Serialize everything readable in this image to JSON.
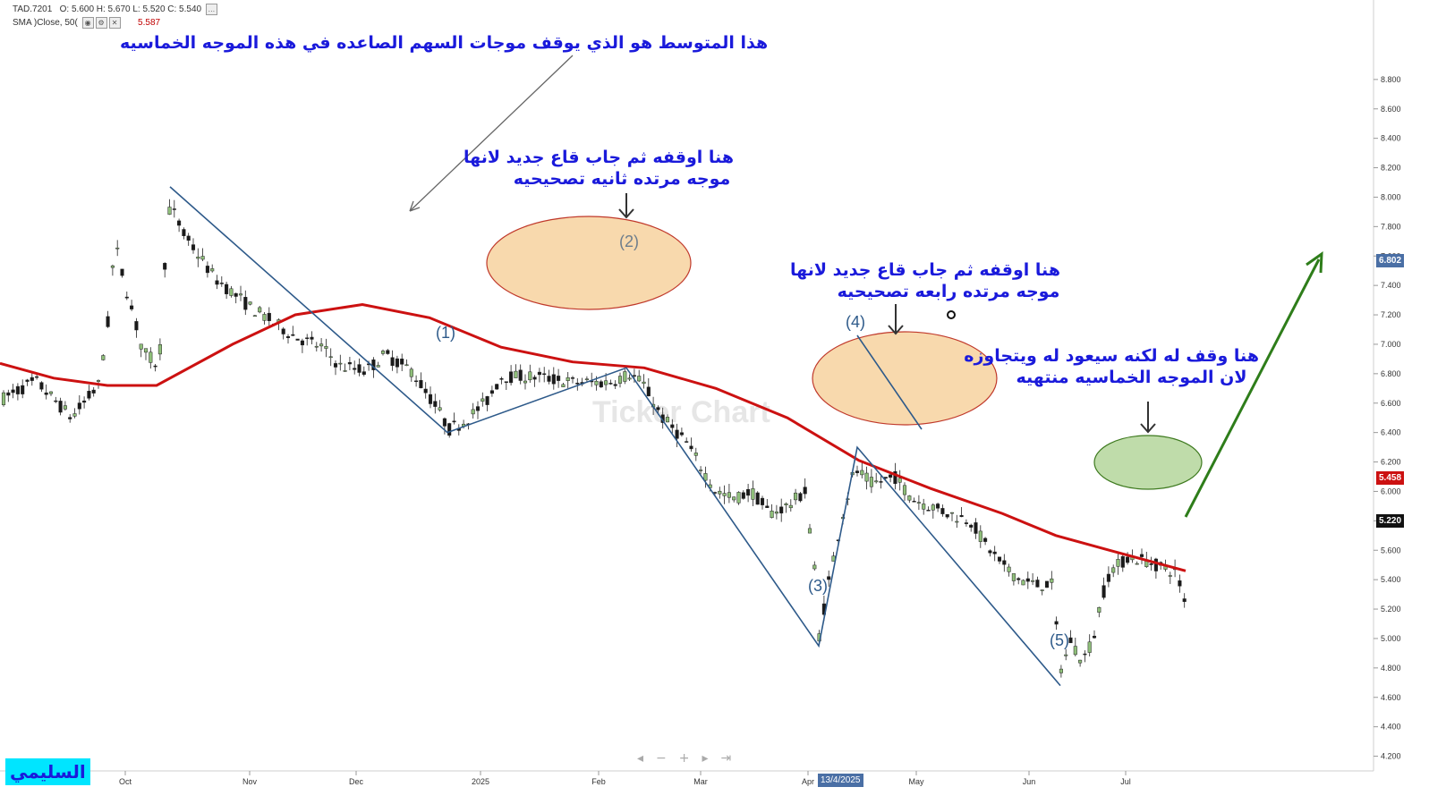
{
  "header": {
    "symbol": "TAD.7201",
    "ohlc": "O: 5.600  H: 5.670  L: 5.520  C: 5.540",
    "sma_label": "SMA  )Close, 50(",
    "sma_value": "5.587"
  },
  "annotations": {
    "sma_note": "هذا المتوسط هو الذي يوقف موجات السهم الصاعده في هذه الموجه الخماسيه",
    "wave2_note_1": "هنا اوقفه ثم جاب قاع جديد لانها",
    "wave2_note_2": "موجه مرتده ثانيه تصحيحيه",
    "wave4_note_1": "هنا اوقفه ثم جاب قاع جديد لانها",
    "wave4_note_2": "موجه مرتده رابعه تصحيحيه",
    "end_note_1": "هنا وقف له لكنه سيعود له ويتجاوزه",
    "end_note_2": "لان الموجه الخماسيه منتهيه"
  },
  "wave_labels": [
    "(1)",
    "(2)",
    "(3)",
    "(4)",
    "(5)"
  ],
  "watermark": "TickerChart",
  "signature": "السليمي",
  "badges": {
    "upper": "6.802",
    "sma": "5.458",
    "last": "5.220",
    "date": "13/4/2025"
  },
  "colors": {
    "sma": "#cc1111",
    "wave_lines": "#2e5a8a",
    "up_candle": "#8fbf7a",
    "down_candle": "#1a1a1a",
    "orange_zone": "#f5c98a",
    "green_zone": "#a9d08e",
    "projection_arrow": "#2e7d1a",
    "annotation_text": "#1a1adb"
  },
  "nav_icons": [
    "chevron-left-icon",
    "minus-icon",
    "plus-icon",
    "chevron-right-icon",
    "end-icon"
  ],
  "chart_data": {
    "type": "candlestick",
    "x_tick_labels": [
      "Oct",
      "Nov",
      "Dec",
      "2025",
      "Feb",
      "Mar",
      "Apr",
      "May",
      "Jun",
      "Jul"
    ],
    "y_tick_labels": [
      "4.200",
      "4.400",
      "4.600",
      "4.800",
      "5.000",
      "5.200",
      "5.400",
      "5.600",
      "5.800",
      "6.000",
      "6.200",
      "6.400",
      "6.600",
      "6.800",
      "7.000",
      "7.200",
      "7.400",
      "7.600",
      "7.800",
      "8.000",
      "8.200",
      "8.400",
      "8.600",
      "8.800"
    ],
    "ylim": [
      4.1,
      8.9
    ],
    "grid": false,
    "series": [
      {
        "name": "SMA  )Close, 50(",
        "type": "line",
        "points": [
          [
            0,
            6.87
          ],
          [
            60,
            6.77
          ],
          [
            120,
            6.72
          ],
          [
            175,
            6.72
          ],
          [
            260,
            7.0
          ],
          [
            330,
            7.2
          ],
          [
            405,
            7.27
          ],
          [
            480,
            7.18
          ],
          [
            560,
            6.98
          ],
          [
            640,
            6.88
          ],
          [
            720,
            6.84
          ],
          [
            800,
            6.7
          ],
          [
            880,
            6.5
          ],
          [
            960,
            6.21
          ],
          [
            1040,
            6.02
          ],
          [
            1120,
            5.85
          ],
          [
            1180,
            5.7
          ],
          [
            1240,
            5.6
          ],
          [
            1325,
            5.46
          ]
        ]
      },
      {
        "name": "",
        "type": "wave",
        "points": [
          [
            190,
            8.07
          ],
          [
            500,
            6.4
          ],
          [
            700,
            6.84
          ],
          [
            915,
            4.95
          ],
          [
            958,
            6.3
          ],
          [
            1185,
            4.68
          ]
        ]
      }
    ],
    "candles_sample": [
      {
        "date": "Jan",
        "ohlc": [
          6.5,
          6.6,
          6.4,
          6.55
        ]
      },
      {
        "date": "Apr",
        "ohlc": [
          5.0,
          5.4,
          4.95,
          5.35
        ]
      },
      {
        "date": "Jun",
        "ohlc": [
          4.75,
          5.05,
          4.68,
          5.0
        ]
      },
      {
        "date": "Jul",
        "ohlc": [
          5.6,
          5.67,
          5.52,
          5.54
        ]
      }
    ],
    "last_price": 5.22
  }
}
